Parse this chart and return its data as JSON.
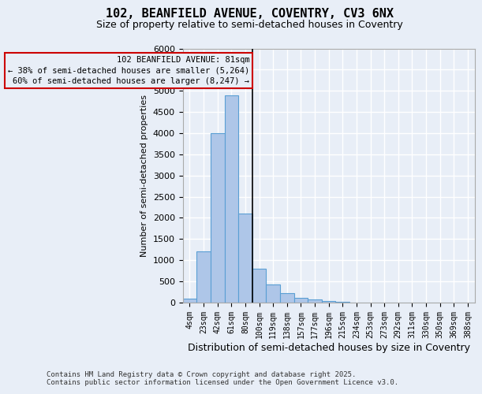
{
  "title_line1": "102, BEANFIELD AVENUE, COVENTRY, CV3 6NX",
  "title_line2": "Size of property relative to semi-detached houses in Coventry",
  "xlabel": "Distribution of semi-detached houses by size in Coventry",
  "ylabel": "Number of semi-detached properties",
  "footer_line1": "Contains HM Land Registry data © Crown copyright and database right 2025.",
  "footer_line2": "Contains public sector information licensed under the Open Government Licence v3.0.",
  "annotation_title": "102 BEANFIELD AVENUE: 81sqm",
  "annotation_line1": "← 38% of semi-detached houses are smaller (5,264)",
  "annotation_line2": "60% of semi-detached houses are larger (8,247) →",
  "categories": [
    "4sqm",
    "23sqm",
    "42sqm",
    "61sqm",
    "80sqm",
    "100sqm",
    "119sqm",
    "138sqm",
    "157sqm",
    "177sqm",
    "196sqm",
    "215sqm",
    "234sqm",
    "253sqm",
    "273sqm",
    "292sqm",
    "311sqm",
    "330sqm",
    "350sqm",
    "369sqm",
    "388sqm"
  ],
  "values": [
    100,
    1200,
    4000,
    4900,
    2100,
    800,
    420,
    220,
    120,
    80,
    30,
    10,
    5,
    2,
    1,
    0,
    0,
    0,
    0,
    0,
    0
  ],
  "bar_color": "#aec6e8",
  "bar_edge_color": "#5a9fd4",
  "vline_color": "#000000",
  "annotation_box_edge_color": "#cc0000",
  "background_color": "#e8eef7",
  "grid_color": "#ffffff",
  "ylim": [
    0,
    6000
  ],
  "yticks": [
    0,
    500,
    1000,
    1500,
    2000,
    2500,
    3000,
    3500,
    4000,
    4500,
    5000,
    5500,
    6000
  ],
  "property_bin": 4,
  "title_fontsize": 11,
  "subtitle_fontsize": 9,
  "xlabel_fontsize": 9,
  "ylabel_fontsize": 8,
  "tick_fontsize": 8,
  "xtick_fontsize": 7,
  "annotation_fontsize": 7.5,
  "footer_fontsize": 6.5
}
